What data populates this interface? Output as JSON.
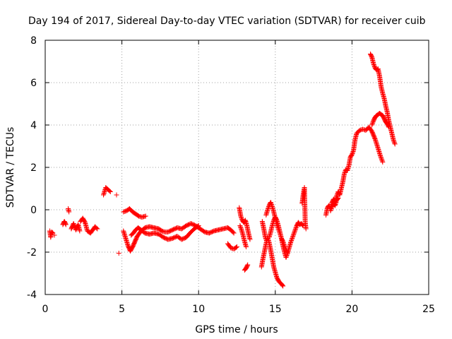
{
  "chart_data": {
    "type": "scatter",
    "title": "Day 194 of 2017, Sidereal Day-to-day VTEC variation (SDTVAR) for receiver cuib",
    "xlabel": "GPS time / hours",
    "ylabel": "SDTVAR / TECUs",
    "xlim": [
      0,
      25
    ],
    "ylim": [
      -4,
      8
    ],
    "xticks": [
      0,
      5,
      10,
      15,
      20,
      25
    ],
    "yticks": [
      -4,
      -2,
      0,
      2,
      4,
      6,
      8
    ],
    "grid": true,
    "marker": "+",
    "color": "#ff0000",
    "segments": [
      {
        "name": "s01",
        "points": [
          [
            0.3,
            -1.0
          ],
          [
            0.36,
            -1.3
          ],
          [
            0.42,
            -1.05
          ],
          [
            0.5,
            -1.1
          ]
        ]
      },
      {
        "name": "s02",
        "points": [
          [
            0.6,
            -1.2
          ]
        ]
      },
      {
        "name": "s03",
        "points": [
          [
            1.15,
            -0.7
          ],
          [
            1.25,
            -0.55
          ],
          [
            1.35,
            -0.7
          ]
        ]
      },
      {
        "name": "s04",
        "points": [
          [
            1.5,
            0.05
          ],
          [
            1.55,
            -0.1
          ]
        ]
      },
      {
        "name": "s05",
        "points": [
          [
            1.7,
            -0.9
          ],
          [
            1.85,
            -0.65
          ],
          [
            2.0,
            -0.95
          ],
          [
            2.15,
            -0.7
          ],
          [
            2.25,
            -1.0
          ]
        ]
      },
      {
        "name": "s06",
        "points": [
          [
            2.3,
            -0.55
          ],
          [
            2.45,
            -0.4
          ],
          [
            2.6,
            -0.6
          ],
          [
            2.75,
            -1.0
          ],
          [
            2.95,
            -1.1
          ],
          [
            3.1,
            -0.95
          ],
          [
            3.25,
            -0.8
          ],
          [
            3.4,
            -0.9
          ]
        ]
      },
      {
        "name": "s07",
        "points": [
          [
            3.8,
            0.7
          ],
          [
            3.95,
            1.05
          ],
          [
            4.1,
            0.95
          ],
          [
            4.25,
            0.85
          ]
        ]
      },
      {
        "name": "s08",
        "points": [
          [
            4.65,
            0.7
          ]
        ]
      },
      {
        "name": "s09",
        "points": [
          [
            4.8,
            -2.05
          ]
        ]
      },
      {
        "name": "s10",
        "points": [
          [
            5.1,
            -0.1
          ],
          [
            5.3,
            -0.05
          ],
          [
            5.5,
            0.05
          ],
          [
            5.7,
            -0.1
          ],
          [
            5.9,
            -0.2
          ],
          [
            6.1,
            -0.3
          ],
          [
            6.3,
            -0.35
          ],
          [
            6.55,
            -0.3
          ]
        ]
      },
      {
        "name": "s11",
        "points": [
          [
            5.1,
            -1.0
          ],
          [
            5.25,
            -1.35
          ],
          [
            5.4,
            -1.7
          ],
          [
            5.55,
            -1.95
          ],
          [
            5.7,
            -1.75
          ],
          [
            5.85,
            -1.5
          ],
          [
            6.0,
            -1.25
          ],
          [
            6.2,
            -1.05
          ],
          [
            6.5,
            -0.85
          ],
          [
            6.8,
            -0.8
          ],
          [
            7.1,
            -0.85
          ],
          [
            7.4,
            -0.9
          ],
          [
            7.6,
            -1.0
          ],
          [
            7.8,
            -1.05
          ],
          [
            8.0,
            -1.05
          ],
          [
            8.3,
            -0.95
          ],
          [
            8.6,
            -0.85
          ],
          [
            8.9,
            -0.9
          ],
          [
            9.2,
            -0.75
          ],
          [
            9.5,
            -0.65
          ],
          [
            9.8,
            -0.75
          ],
          [
            10.1,
            -0.9
          ],
          [
            10.4,
            -1.05
          ],
          [
            10.7,
            -1.1
          ],
          [
            11.0,
            -1.0
          ],
          [
            11.3,
            -0.95
          ],
          [
            11.6,
            -0.9
          ],
          [
            11.9,
            -0.85
          ],
          [
            12.1,
            -0.95
          ],
          [
            12.3,
            -1.1
          ]
        ]
      },
      {
        "name": "s12",
        "points": [
          [
            5.6,
            -1.2
          ],
          [
            5.75,
            -1.1
          ],
          [
            5.9,
            -0.95
          ],
          [
            6.05,
            -0.85
          ],
          [
            6.25,
            -0.95
          ],
          [
            6.5,
            -1.1
          ],
          [
            6.8,
            -1.15
          ],
          [
            7.1,
            -1.1
          ],
          [
            7.4,
            -1.15
          ],
          [
            7.7,
            -1.3
          ],
          [
            8.0,
            -1.4
          ],
          [
            8.3,
            -1.35
          ],
          [
            8.6,
            -1.25
          ],
          [
            8.9,
            -1.4
          ],
          [
            9.2,
            -1.3
          ],
          [
            9.5,
            -1.05
          ],
          [
            9.8,
            -0.85
          ],
          [
            10.0,
            -0.75
          ]
        ]
      },
      {
        "name": "s13",
        "points": [
          [
            11.9,
            -1.6
          ],
          [
            12.1,
            -1.8
          ],
          [
            12.3,
            -1.85
          ],
          [
            12.5,
            -1.75
          ]
        ]
      },
      {
        "name": "s14",
        "points": [
          [
            12.65,
            0.1
          ],
          [
            12.75,
            -0.3
          ],
          [
            12.85,
            -0.5
          ],
          [
            12.95,
            -0.6
          ],
          [
            13.05,
            -0.5
          ],
          [
            13.15,
            -0.75
          ],
          [
            13.25,
            -1.1
          ],
          [
            13.35,
            -1.4
          ]
        ]
      },
      {
        "name": "s15",
        "points": [
          [
            12.7,
            -0.75
          ],
          [
            12.8,
            -0.95
          ],
          [
            12.9,
            -1.2
          ],
          [
            13.0,
            -1.5
          ],
          [
            13.1,
            -1.75
          ]
        ]
      },
      {
        "name": "s16",
        "points": [
          [
            13.0,
            -2.85
          ],
          [
            13.1,
            -2.75
          ],
          [
            13.2,
            -2.6
          ]
        ]
      },
      {
        "name": "s17",
        "points": [
          [
            14.1,
            -2.7
          ],
          [
            14.2,
            -2.3
          ],
          [
            14.3,
            -1.95
          ],
          [
            14.4,
            -1.6
          ],
          [
            14.5,
            -1.3
          ],
          [
            14.6,
            -1.55
          ],
          [
            14.7,
            -1.9
          ],
          [
            14.8,
            -2.3
          ],
          [
            14.9,
            -2.7
          ],
          [
            15.0,
            -2.95
          ],
          [
            15.1,
            -3.2
          ],
          [
            15.25,
            -3.4
          ],
          [
            15.4,
            -3.5
          ],
          [
            15.5,
            -3.6
          ]
        ]
      },
      {
        "name": "s18",
        "points": [
          [
            14.15,
            -0.55
          ],
          [
            14.25,
            -0.9
          ],
          [
            14.35,
            -1.3
          ],
          [
            14.45,
            -1.5
          ]
        ]
      },
      {
        "name": "s19",
        "points": [
          [
            14.4,
            -0.25
          ],
          [
            14.5,
            0.0
          ],
          [
            14.6,
            0.2
          ],
          [
            14.7,
            0.35
          ],
          [
            14.8,
            0.15
          ],
          [
            14.9,
            -0.1
          ],
          [
            15.0,
            -0.4
          ],
          [
            15.1,
            -0.7
          ],
          [
            15.2,
            -0.9
          ],
          [
            15.3,
            -1.1
          ],
          [
            15.4,
            -1.35
          ],
          [
            15.5,
            -1.5
          ],
          [
            15.6,
            -1.7
          ],
          [
            15.7,
            -1.9
          ],
          [
            15.8,
            -2.05
          ]
        ]
      },
      {
        "name": "s20",
        "points": [
          [
            14.6,
            -1.3
          ],
          [
            14.7,
            -1.05
          ],
          [
            14.8,
            -0.75
          ],
          [
            14.9,
            -0.5
          ],
          [
            15.0,
            -0.35
          ],
          [
            15.1,
            -0.5
          ],
          [
            15.2,
            -0.75
          ],
          [
            15.3,
            -1.05
          ],
          [
            15.4,
            -1.35
          ],
          [
            15.5,
            -1.7
          ],
          [
            15.6,
            -2.0
          ],
          [
            15.7,
            -2.25
          ],
          [
            15.8,
            -2.05
          ],
          [
            15.9,
            -1.8
          ],
          [
            16.0,
            -1.55
          ],
          [
            16.1,
            -1.35
          ],
          [
            16.2,
            -1.15
          ],
          [
            16.3,
            -0.95
          ],
          [
            16.4,
            -0.75
          ],
          [
            16.5,
            -0.6
          ],
          [
            16.6,
            -0.7
          ],
          [
            16.7,
            -0.65
          ],
          [
            16.8,
            -0.75
          ]
        ]
      },
      {
        "name": "s21",
        "points": [
          [
            16.75,
            0.3
          ],
          [
            16.82,
            0.7
          ],
          [
            16.9,
            1.05
          ],
          [
            16.95,
            -0.6
          ],
          [
            17.0,
            -0.9
          ]
        ]
      },
      {
        "name": "s22",
        "points": [
          [
            18.3,
            -0.25
          ],
          [
            18.4,
            0.1
          ],
          [
            18.5,
            0.2
          ],
          [
            18.6,
            0.0
          ],
          [
            18.7,
            0.35
          ],
          [
            18.8,
            0.5
          ],
          [
            18.9,
            0.4
          ],
          [
            19.0,
            0.65
          ],
          [
            19.1,
            0.85
          ],
          [
            19.2,
            0.7
          ],
          [
            19.3,
            1.0
          ],
          [
            19.4,
            1.3
          ],
          [
            19.5,
            1.7
          ],
          [
            19.6,
            1.9
          ],
          [
            19.7,
            1.85
          ],
          [
            19.8,
            2.1
          ],
          [
            19.9,
            2.5
          ],
          [
            20.0,
            2.6
          ],
          [
            20.1,
            2.8
          ],
          [
            20.2,
            3.3
          ],
          [
            20.3,
            3.6
          ],
          [
            20.5,
            3.75
          ],
          [
            20.7,
            3.8
          ],
          [
            20.9,
            3.75
          ],
          [
            21.1,
            3.9
          ],
          [
            21.3,
            3.7
          ],
          [
            21.5,
            3.35
          ],
          [
            21.7,
            2.9
          ],
          [
            21.85,
            2.55
          ],
          [
            22.0,
            2.25
          ]
        ]
      },
      {
        "name": "s23",
        "points": [
          [
            18.6,
            -0.05
          ],
          [
            18.7,
            0.15
          ],
          [
            18.8,
            0.3
          ],
          [
            18.9,
            0.2
          ],
          [
            19.0,
            0.45
          ],
          [
            19.1,
            0.55
          ]
        ]
      },
      {
        "name": "s24",
        "points": [
          [
            21.2,
            7.35
          ],
          [
            21.3,
            7.2
          ],
          [
            21.4,
            6.9
          ],
          [
            21.5,
            6.7
          ],
          [
            21.6,
            6.6
          ],
          [
            21.7,
            6.65
          ],
          [
            21.8,
            6.3
          ],
          [
            21.9,
            5.8
          ],
          [
            22.0,
            5.5
          ],
          [
            22.1,
            5.25
          ],
          [
            22.2,
            4.9
          ],
          [
            22.3,
            4.6
          ],
          [
            22.4,
            4.2
          ],
          [
            22.5,
            3.9
          ],
          [
            22.6,
            3.6
          ],
          [
            22.7,
            3.3
          ],
          [
            22.8,
            3.1
          ]
        ]
      },
      {
        "name": "s25",
        "points": [
          [
            21.3,
            4.0
          ],
          [
            21.4,
            4.2
          ],
          [
            21.5,
            4.35
          ],
          [
            21.6,
            4.45
          ],
          [
            21.7,
            4.5
          ],
          [
            21.8,
            4.55
          ],
          [
            21.9,
            4.5
          ],
          [
            22.0,
            4.45
          ],
          [
            22.1,
            4.3
          ],
          [
            22.2,
            4.15
          ],
          [
            22.3,
            4.05
          ],
          [
            22.4,
            3.9
          ]
        ]
      }
    ]
  }
}
